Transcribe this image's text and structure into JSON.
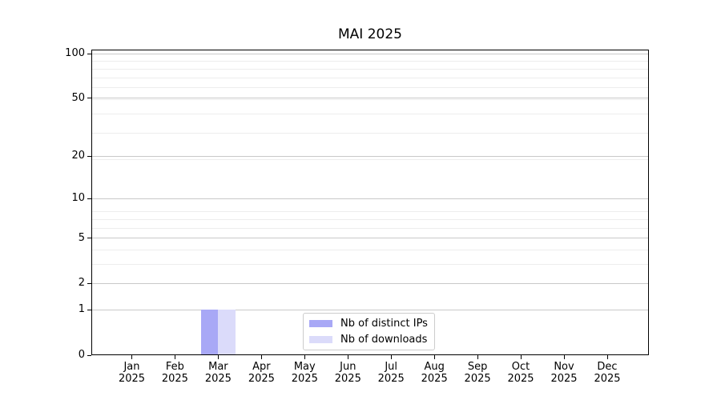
{
  "chart_data": {
    "type": "bar",
    "title": "MAI 2025",
    "categories": [
      "Jan 2025",
      "Feb 2025",
      "Mar 2025",
      "Apr 2025",
      "May 2025",
      "Jun 2025",
      "Jul 2025",
      "Aug 2025",
      "Sep 2025",
      "Oct 2025",
      "Nov 2025",
      "Dec 2025"
    ],
    "series": [
      {
        "name": "Nb of distinct IPs",
        "color": "#a8a8f6",
        "values": [
          0,
          0,
          1,
          0,
          0,
          0,
          0,
          0,
          0,
          0,
          0,
          0
        ]
      },
      {
        "name": "Nb of downloads",
        "color": "#dbdbfa",
        "values": [
          0,
          0,
          1,
          0,
          0,
          0,
          0,
          0,
          0,
          0,
          0,
          0
        ]
      }
    ],
    "xlabel": "",
    "ylabel": "",
    "y_ticks": [
      0,
      1,
      2,
      5,
      10,
      20,
      50,
      100
    ],
    "y_scale": "log1p",
    "ylim": [
      0,
      106
    ],
    "grid": "horizontal major and minor gridlines",
    "legend_position": "inside bottom-center"
  },
  "colors": {
    "bar_distinct_ips": "#a8a8f6",
    "bar_downloads": "#dbdbfa",
    "grid_major": "#c9c9c9",
    "grid_minor": "#ededed",
    "axis": "#000000",
    "legend_border": "#cccccc",
    "background": "#ffffff"
  }
}
